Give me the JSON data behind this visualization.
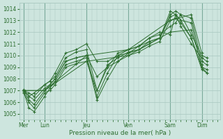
{
  "xlabel": "Pression niveau de la mer( hPa )",
  "ylim": [
    1004.5,
    1014.5
  ],
  "yticks": [
    1005,
    1006,
    1007,
    1008,
    1009,
    1010,
    1011,
    1012,
    1013,
    1014
  ],
  "xtick_labels": [
    "Mer",
    "Lun",
    "Jeu",
    "Ven",
    "Sam",
    "Dim"
  ],
  "xtick_positions": [
    0,
    24,
    72,
    120,
    168,
    204
  ],
  "xlim": [
    -5,
    225
  ],
  "background_color": "#cde5de",
  "grid_color": "#a8c8c0",
  "line_color": "#2d6e30",
  "series": [
    {
      "x": [
        0,
        6,
        12,
        24,
        30,
        36,
        48,
        60,
        72,
        84,
        96,
        108,
        120,
        132,
        144,
        156,
        168,
        174,
        180,
        192,
        204,
        210
      ],
      "y": [
        1007.0,
        1006.5,
        1006.8,
        1007.5,
        1007.8,
        1008.2,
        1009.8,
        1010.3,
        1010.5,
        1007.0,
        1009.0,
        1010.2,
        1010.5,
        1010.8,
        1011.2,
        1011.5,
        1013.5,
        1013.8,
        1013.5,
        1013.2,
        1009.5,
        1009.2
      ]
    },
    {
      "x": [
        0,
        6,
        12,
        24,
        30,
        36,
        48,
        60,
        72,
        84,
        96,
        108,
        120,
        132,
        144,
        156,
        168,
        174,
        180,
        192,
        204,
        210
      ],
      "y": [
        1007.0,
        1006.2,
        1005.8,
        1007.0,
        1007.5,
        1008.0,
        1009.5,
        1009.8,
        1010.0,
        1006.5,
        1008.5,
        1010.0,
        1010.2,
        1010.5,
        1011.0,
        1011.5,
        1013.3,
        1013.5,
        1013.0,
        1012.8,
        1009.0,
        1008.8
      ]
    },
    {
      "x": [
        0,
        6,
        12,
        24,
        30,
        36,
        48,
        60,
        72,
        84,
        96,
        108,
        120,
        132,
        144,
        156,
        168,
        174,
        180,
        192,
        204,
        210
      ],
      "y": [
        1006.9,
        1005.5,
        1005.2,
        1006.5,
        1007.2,
        1007.8,
        1009.2,
        1009.5,
        1009.8,
        1006.2,
        1008.0,
        1009.5,
        1010.0,
        1010.3,
        1010.8,
        1011.2,
        1013.0,
        1013.2,
        1012.8,
        1011.5,
        1008.8,
        1008.5
      ]
    },
    {
      "x": [
        0,
        6,
        12,
        24,
        30,
        36,
        48,
        60,
        72,
        84,
        96,
        108,
        120,
        132,
        144,
        156,
        168,
        174,
        180,
        192,
        204,
        210
      ],
      "y": [
        1006.8,
        1006.0,
        1005.5,
        1006.8,
        1007.0,
        1007.5,
        1009.0,
        1009.3,
        1009.5,
        1007.0,
        1009.2,
        1009.8,
        1010.3,
        1010.5,
        1011.2,
        1011.5,
        1013.8,
        1013.5,
        1012.5,
        1011.0,
        1009.8,
        1009.5
      ]
    },
    {
      "x": [
        0,
        6,
        12,
        24,
        30,
        36,
        48,
        60,
        72,
        84,
        96,
        108,
        120,
        132,
        144,
        156,
        168,
        174,
        180,
        192,
        204,
        210
      ],
      "y": [
        1007.0,
        1006.8,
        1006.5,
        1007.5,
        1007.8,
        1008.5,
        1010.2,
        1010.5,
        1011.0,
        1009.5,
        1009.5,
        1010.0,
        1010.5,
        1010.8,
        1011.5,
        1011.8,
        1012.5,
        1012.8,
        1013.5,
        1011.8,
        1010.0,
        1009.8
      ]
    },
    {
      "x": [
        0,
        6,
        12,
        24,
        30,
        36,
        48,
        60,
        72,
        84,
        96,
        108,
        120,
        132,
        144,
        156,
        168,
        174,
        180,
        192,
        204,
        210
      ],
      "y": [
        1007.1,
        1006.5,
        1006.2,
        1007.2,
        1007.5,
        1008.0,
        1009.5,
        1009.8,
        1010.0,
        1008.2,
        1009.0,
        1009.5,
        1010.2,
        1010.8,
        1011.5,
        1012.0,
        1011.8,
        1013.5,
        1013.0,
        1011.5,
        1009.0,
        1008.5
      ]
    },
    {
      "x": [
        0,
        24,
        72,
        120,
        168,
        192,
        204
      ],
      "y": [
        1007.0,
        1007.0,
        1009.5,
        1010.0,
        1012.0,
        1012.2,
        1009.2
      ]
    },
    {
      "x": [
        0,
        24,
        72,
        120,
        168,
        192,
        204
      ],
      "y": [
        1007.0,
        1007.0,
        1010.0,
        1010.5,
        1013.0,
        1013.5,
        1010.2
      ]
    }
  ],
  "vline_color": "#7aaa9a"
}
